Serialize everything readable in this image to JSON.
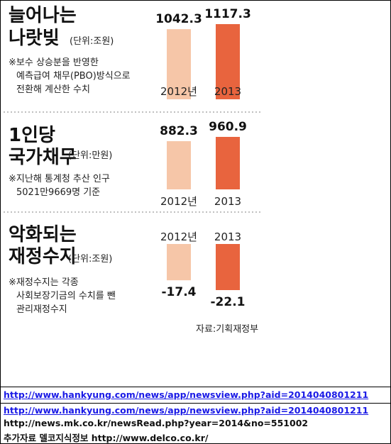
{
  "chart_data": [
    {
      "type": "bar",
      "title": "늘어나는 나랏빚",
      "title_lines": [
        "늘어나는",
        "나랏빚"
      ],
      "unit": "(단위:조원)",
      "note_lines": [
        "※보수 상승분을 반영한",
        "예측급여 채무(PBO)방식으로",
        "전환해 계산한 수치"
      ],
      "categories": [
        "2012년",
        "2013"
      ],
      "values": [
        1042.3,
        1117.3
      ],
      "value_labels": [
        "1042.3",
        "1117.3"
      ],
      "ylim": [
        0,
        1117.3
      ]
    },
    {
      "type": "bar",
      "title": "1인당 국가채무",
      "title_lines": [
        "1인당",
        "국가채무"
      ],
      "unit": "(단위:만원)",
      "note_lines": [
        "※지난해 통계청 추산 인구",
        "5021만9669명 기준"
      ],
      "categories": [
        "2012년",
        "2013"
      ],
      "values": [
        882.3,
        960.9
      ],
      "value_labels": [
        "882.3",
        "960.9"
      ],
      "ylim": [
        0,
        960.9
      ]
    },
    {
      "type": "bar",
      "title": "악화되는 재정수지",
      "title_lines": [
        "악화되는",
        "재정수지"
      ],
      "unit": "(단위:조원)",
      "note_lines": [
        "※재정수지는 각종",
        "사회보장기금의 수치를 뺀",
        "관리재정수지"
      ],
      "categories": [
        "2012년",
        "2013"
      ],
      "values": [
        -17.4,
        -22.1
      ],
      "value_labels": [
        "-17.4",
        "-22.1"
      ],
      "ylim": [
        -22.1,
        0
      ]
    }
  ],
  "source": "자료:기획재정부",
  "colors": {
    "bar_2012": "#f6c6a8",
    "bar_2013": "#e8643e",
    "divider": "#9a9a9a"
  },
  "links": [
    "http://www.hankyung.com/news/app/newsview.php?aid=2014040801211",
    "http://www.hankyung.com/news/app/newsview.php?aid=2014040801211",
    "http://news.mk.co.kr/newsRead.php?year=2014&no=551002",
    "추가자료 델코지식정보 http://www.delco.co.kr/"
  ]
}
